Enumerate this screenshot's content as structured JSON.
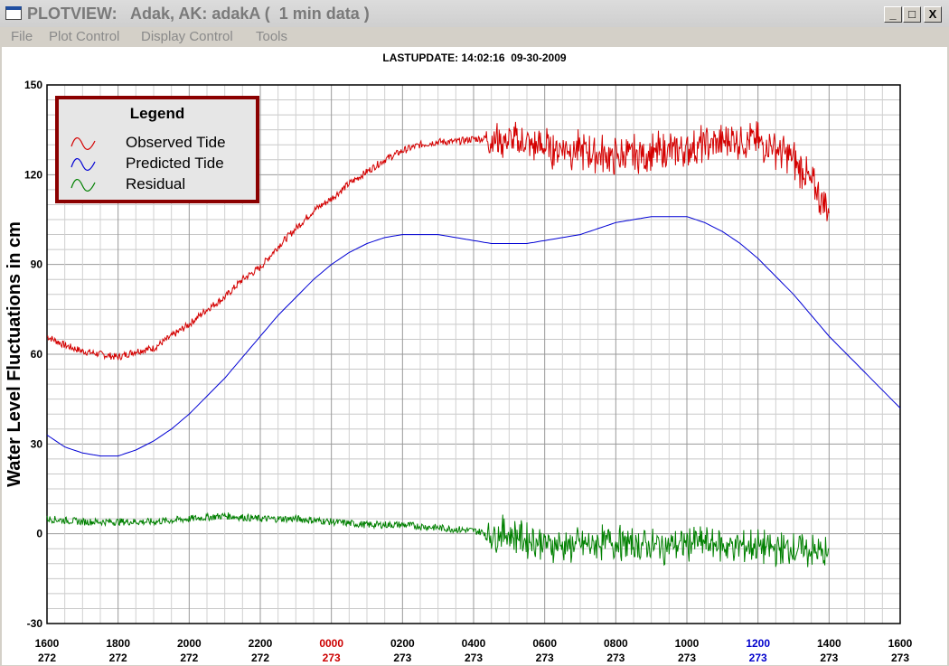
{
  "window": {
    "title": "PLOTVIEW:   Adak, AK: adakA (  1 min data )",
    "buttons": {
      "minimize": "_",
      "maximize": "□",
      "close": "X"
    }
  },
  "menu": [
    "File",
    "Plot Control",
    "Display Control",
    "Tools"
  ],
  "last_update": "LASTUPDATE: 14:02:16  09-30-2009",
  "legend": {
    "title": "Legend",
    "items": [
      {
        "label": "Observed Tide",
        "color": "#d40000",
        "icon": "wave-icon"
      },
      {
        "label": "Predicted Tide",
        "color": "#0000d4",
        "icon": "wave-icon"
      },
      {
        "label": "Residual",
        "color": "#008000",
        "icon": "wave-icon"
      }
    ]
  },
  "chart_data": {
    "type": "line",
    "title": "",
    "ylabel": "Water Level Fluctuations in cm",
    "xlabel": "",
    "ylim": [
      -30,
      150
    ],
    "yticks": [
      -30,
      0,
      30,
      60,
      90,
      120,
      150
    ],
    "xlim_hours": [
      0,
      24
    ],
    "x_tick_labels": [
      {
        "time": "1600",
        "day": "272",
        "color": "#000000"
      },
      {
        "time": "1800",
        "day": "272",
        "color": "#000000"
      },
      {
        "time": "2000",
        "day": "272",
        "color": "#000000"
      },
      {
        "time": "2200",
        "day": "272",
        "color": "#000000"
      },
      {
        "time": "0000",
        "day": "273",
        "color": "#cc0000"
      },
      {
        "time": "0200",
        "day": "273",
        "color": "#000000"
      },
      {
        "time": "0400",
        "day": "273",
        "color": "#000000"
      },
      {
        "time": "0600",
        "day": "273",
        "color": "#000000"
      },
      {
        "time": "0800",
        "day": "273",
        "color": "#000000"
      },
      {
        "time": "1000",
        "day": "273",
        "color": "#000000"
      },
      {
        "time": "1200",
        "day": "273",
        "color": "#0000cc"
      },
      {
        "time": "1400",
        "day": "273",
        "color": "#000000"
      },
      {
        "time": "1600",
        "day": "273",
        "color": "#000000"
      }
    ],
    "grid": true,
    "series": [
      {
        "name": "Observed Tide",
        "color": "#d40000",
        "x": [
          0,
          0.5,
          1,
          1.5,
          2,
          2.5,
          3,
          3.5,
          4,
          4.5,
          5,
          5.5,
          6,
          6.5,
          7,
          7.5,
          8,
          8.5,
          9,
          9.5,
          10,
          10.5,
          11,
          11.5,
          12,
          12.5,
          13,
          13.5,
          14,
          14.5,
          15,
          15.5,
          16,
          16.5,
          17,
          17.5,
          18,
          18.5,
          19,
          19.5,
          20,
          20.5,
          21,
          21.5,
          22
        ],
        "y": [
          66,
          63,
          61,
          60,
          59,
          61,
          62,
          66,
          70,
          75,
          79,
          85,
          89,
          96,
          102,
          108,
          112,
          117,
          121,
          125,
          128,
          130,
          131,
          131,
          132,
          132,
          131,
          130,
          129,
          129,
          128,
          127,
          126,
          127,
          127,
          128,
          129,
          130,
          131,
          132,
          131,
          129,
          125,
          117,
          108
        ]
      },
      {
        "name": "Predicted Tide",
        "color": "#0000d4",
        "x": [
          0,
          0.5,
          1,
          1.5,
          2,
          2.5,
          3,
          3.5,
          4,
          4.5,
          5,
          5.5,
          6,
          6.5,
          7,
          7.5,
          8,
          8.5,
          9,
          9.5,
          10,
          10.5,
          11,
          11.5,
          12,
          12.5,
          13,
          13.5,
          14,
          14.5,
          15,
          15.5,
          16,
          16.5,
          17,
          17.5,
          18,
          18.5,
          19,
          19.5,
          20,
          20.5,
          21,
          21.5,
          22,
          22.5,
          23,
          23.5,
          24
        ],
        "y": [
          33,
          29,
          27,
          26,
          26,
          28,
          31,
          35,
          40,
          46,
          52,
          59,
          66,
          73,
          79,
          85,
          90,
          94,
          97,
          99,
          100,
          100,
          100,
          99,
          98,
          97,
          97,
          97,
          98,
          99,
          100,
          102,
          104,
          105,
          106,
          106,
          106,
          104,
          101,
          97,
          92,
          86,
          80,
          73,
          66,
          60,
          54,
          48,
          42
        ]
      },
      {
        "name": "Residual",
        "color": "#008000",
        "x": [
          0,
          1,
          2,
          3,
          4,
          5,
          6,
          7,
          8,
          9,
          10,
          11,
          12,
          12.5,
          13,
          13.5,
          14,
          14.5,
          15,
          15.5,
          16,
          16.5,
          17,
          17.5,
          18,
          18.5,
          19,
          19.5,
          20,
          20.5,
          21,
          21.5,
          22
        ],
        "y": [
          5,
          4,
          4,
          4,
          5,
          6,
          5,
          5,
          4,
          3,
          3,
          2,
          1,
          0,
          0,
          -2,
          -3,
          -4,
          -4,
          -3,
          -3,
          -3,
          -4,
          -4,
          -3,
          -3,
          -4,
          -4,
          -4,
          -5,
          -5,
          -6,
          -7
        ]
      }
    ]
  }
}
